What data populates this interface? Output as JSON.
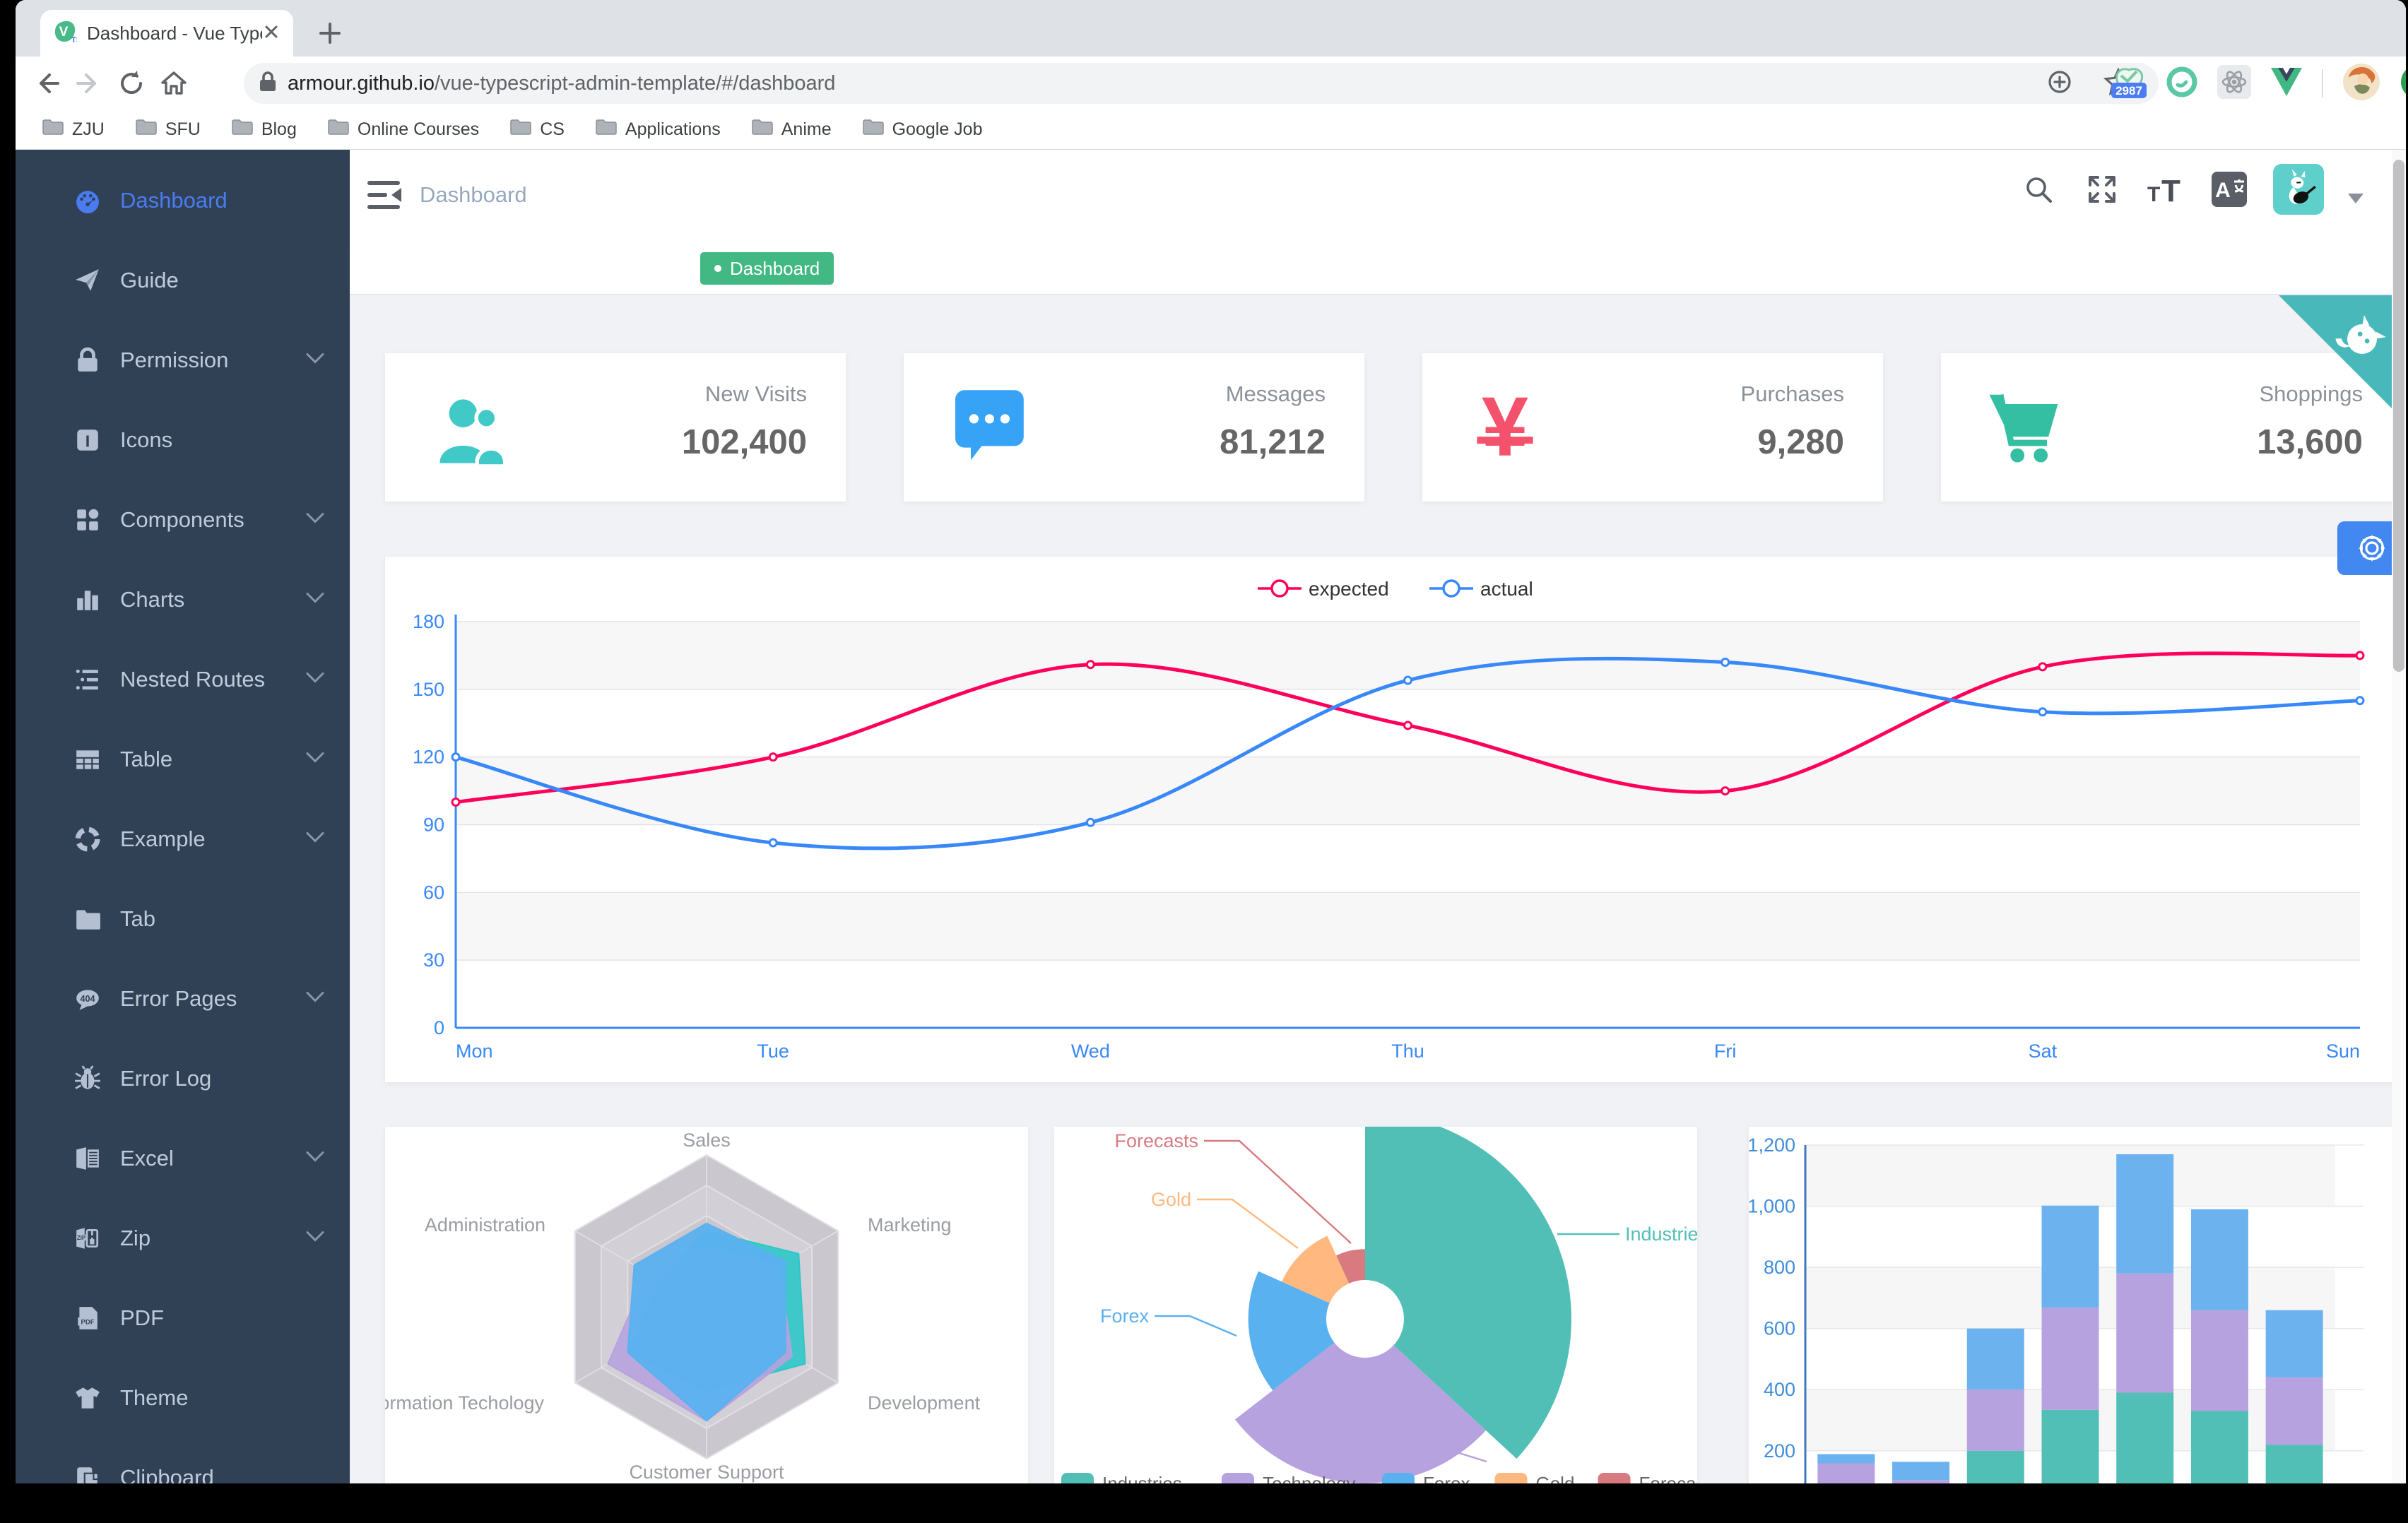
{
  "browser": {
    "tab": {
      "title": "Dashboard - Vue Typescript Ad"
    },
    "toolbar": {
      "url_host": "armour.github.io",
      "url_path": "/vue-typescript-admin-template/#/dashboard",
      "extension_badge": "2987"
    },
    "bookmarks": [
      "ZJU",
      "SFU",
      "Blog",
      "Online Courses",
      "CS",
      "Applications",
      "Anime",
      "Google Job"
    ]
  },
  "sidebar": {
    "items": [
      {
        "label": "Dashboard",
        "icon": "dashboard-icon",
        "active": true,
        "expandable": false
      },
      {
        "label": "Guide",
        "icon": "guide-icon",
        "active": false,
        "expandable": false
      },
      {
        "label": "Permission",
        "icon": "lock-icon",
        "active": false,
        "expandable": true
      },
      {
        "label": "Icons",
        "icon": "icons-icon",
        "active": false,
        "expandable": false
      },
      {
        "label": "Components",
        "icon": "components-icon",
        "active": false,
        "expandable": true
      },
      {
        "label": "Charts",
        "icon": "charts-icon",
        "active": false,
        "expandable": true
      },
      {
        "label": "Nested Routes",
        "icon": "nested-routes-icon",
        "active": false,
        "expandable": true
      },
      {
        "label": "Table",
        "icon": "table-icon",
        "active": false,
        "expandable": true
      },
      {
        "label": "Example",
        "icon": "example-icon",
        "active": false,
        "expandable": true
      },
      {
        "label": "Tab",
        "icon": "tab-icon",
        "active": false,
        "expandable": false
      },
      {
        "label": "Error Pages",
        "icon": "error-pages-icon",
        "active": false,
        "expandable": true
      },
      {
        "label": "Error Log",
        "icon": "bug-icon",
        "active": false,
        "expandable": false
      },
      {
        "label": "Excel",
        "icon": "excel-icon",
        "active": false,
        "expandable": true
      },
      {
        "label": "Zip",
        "icon": "zip-icon",
        "active": false,
        "expandable": true
      },
      {
        "label": "PDF",
        "icon": "pdf-icon",
        "active": false,
        "expandable": false
      },
      {
        "label": "Theme",
        "icon": "theme-icon",
        "active": false,
        "expandable": false
      },
      {
        "label": "Clipboard",
        "icon": "clipboard-icon",
        "active": false,
        "expandable": false
      }
    ]
  },
  "header": {
    "breadcrumb": "Dashboard",
    "tag": {
      "label": "Dashboard",
      "color": "#42b983"
    }
  },
  "stats": [
    {
      "icon": "people-icon",
      "label": "New Visits",
      "value": "102,400",
      "color": "#40c9c6"
    },
    {
      "icon": "message-icon",
      "label": "Messages",
      "value": "81,212",
      "color": "#36a3f7"
    },
    {
      "icon": "money-icon",
      "label": "Purchases",
      "value": "9,280",
      "color": "#f4516c"
    },
    {
      "icon": "shopping-cart-icon",
      "label": "Shoppings",
      "value": "13,600",
      "color": "#34bfa3"
    }
  ],
  "chart_data": [
    {
      "id": "line",
      "type": "line",
      "categories": [
        "Mon",
        "Tue",
        "Wed",
        "Thu",
        "Fri",
        "Sat",
        "Sun"
      ],
      "series": [
        {
          "name": "expected",
          "color": "#FF005A",
          "values": [
            100,
            120,
            161,
            134,
            105,
            160,
            165
          ]
        },
        {
          "name": "actual",
          "color": "#3888fa",
          "values": [
            120,
            82,
            91,
            154,
            162,
            140,
            145
          ]
        }
      ],
      "ylim": [
        0,
        180
      ],
      "ytick": 30,
      "legend_position": "top",
      "grid": true
    },
    {
      "id": "radar",
      "type": "radar",
      "indicators": [
        {
          "name": "Sales",
          "max": 10000
        },
        {
          "name": "Administration",
          "max": 20000
        },
        {
          "name": "Information Techology",
          "max": 20000
        },
        {
          "name": "Customer Support",
          "max": 20000
        },
        {
          "name": "Development",
          "max": 20000
        },
        {
          "name": "Marketing",
          "max": 20000
        }
      ],
      "series": [
        {
          "color": "#2ec7c9",
          "values": [
            5000,
            7000,
            12000,
            11000,
            15000,
            14000
          ]
        },
        {
          "color": "#b6a2de",
          "values": [
            4000,
            9000,
            15000,
            15000,
            13000,
            11000
          ]
        },
        {
          "color": "#5ab1ef",
          "values": [
            5500,
            11000,
            12000,
            15000,
            12000,
            12000
          ]
        }
      ]
    },
    {
      "id": "pie",
      "type": "pie",
      "rose": true,
      "slices": [
        {
          "name": "Industries",
          "value": 320,
          "color": "#52bfb6"
        },
        {
          "name": "Technology",
          "value": 240,
          "color": "#b6a2de"
        },
        {
          "name": "Forex",
          "value": 149,
          "color": "#5ab1ef"
        },
        {
          "name": "Gold",
          "value": 100,
          "color": "#ffb980"
        },
        {
          "name": "Forecasts",
          "value": 59,
          "color": "#d87a80"
        }
      ],
      "legend_position": "bottom"
    },
    {
      "id": "bar",
      "type": "bar",
      "stacked": true,
      "categories": [
        "",
        "",
        "",
        "",
        "",
        "",
        ""
      ],
      "series": [
        {
          "color": "#52bfb6",
          "values": [
            79,
            52,
            200,
            334,
            390,
            330,
            220
          ]
        },
        {
          "color": "#b6a2de",
          "values": [
            80,
            52,
            200,
            334,
            390,
            330,
            220
          ]
        },
        {
          "color": "#6cb2ef",
          "values": [
            30,
            60,
            200,
            334,
            390,
            330,
            220
          ]
        }
      ],
      "ylim": [
        0,
        1200
      ],
      "ytick": 200,
      "yticklabels": [
        "200",
        "400",
        "600",
        "800",
        "1,000",
        "1,200"
      ]
    }
  ],
  "ui": {
    "colors": {
      "sidebar_bg": "#304156",
      "sidebar_text": "#bfcbd9",
      "active_link": "#4a7cf0",
      "tag_green": "#42b983",
      "corner_teal": "#49b8ba",
      "gear_blue": "#4387f1",
      "content_bg": "#f0f2f5",
      "axis_blue": "#3888fa"
    }
  }
}
